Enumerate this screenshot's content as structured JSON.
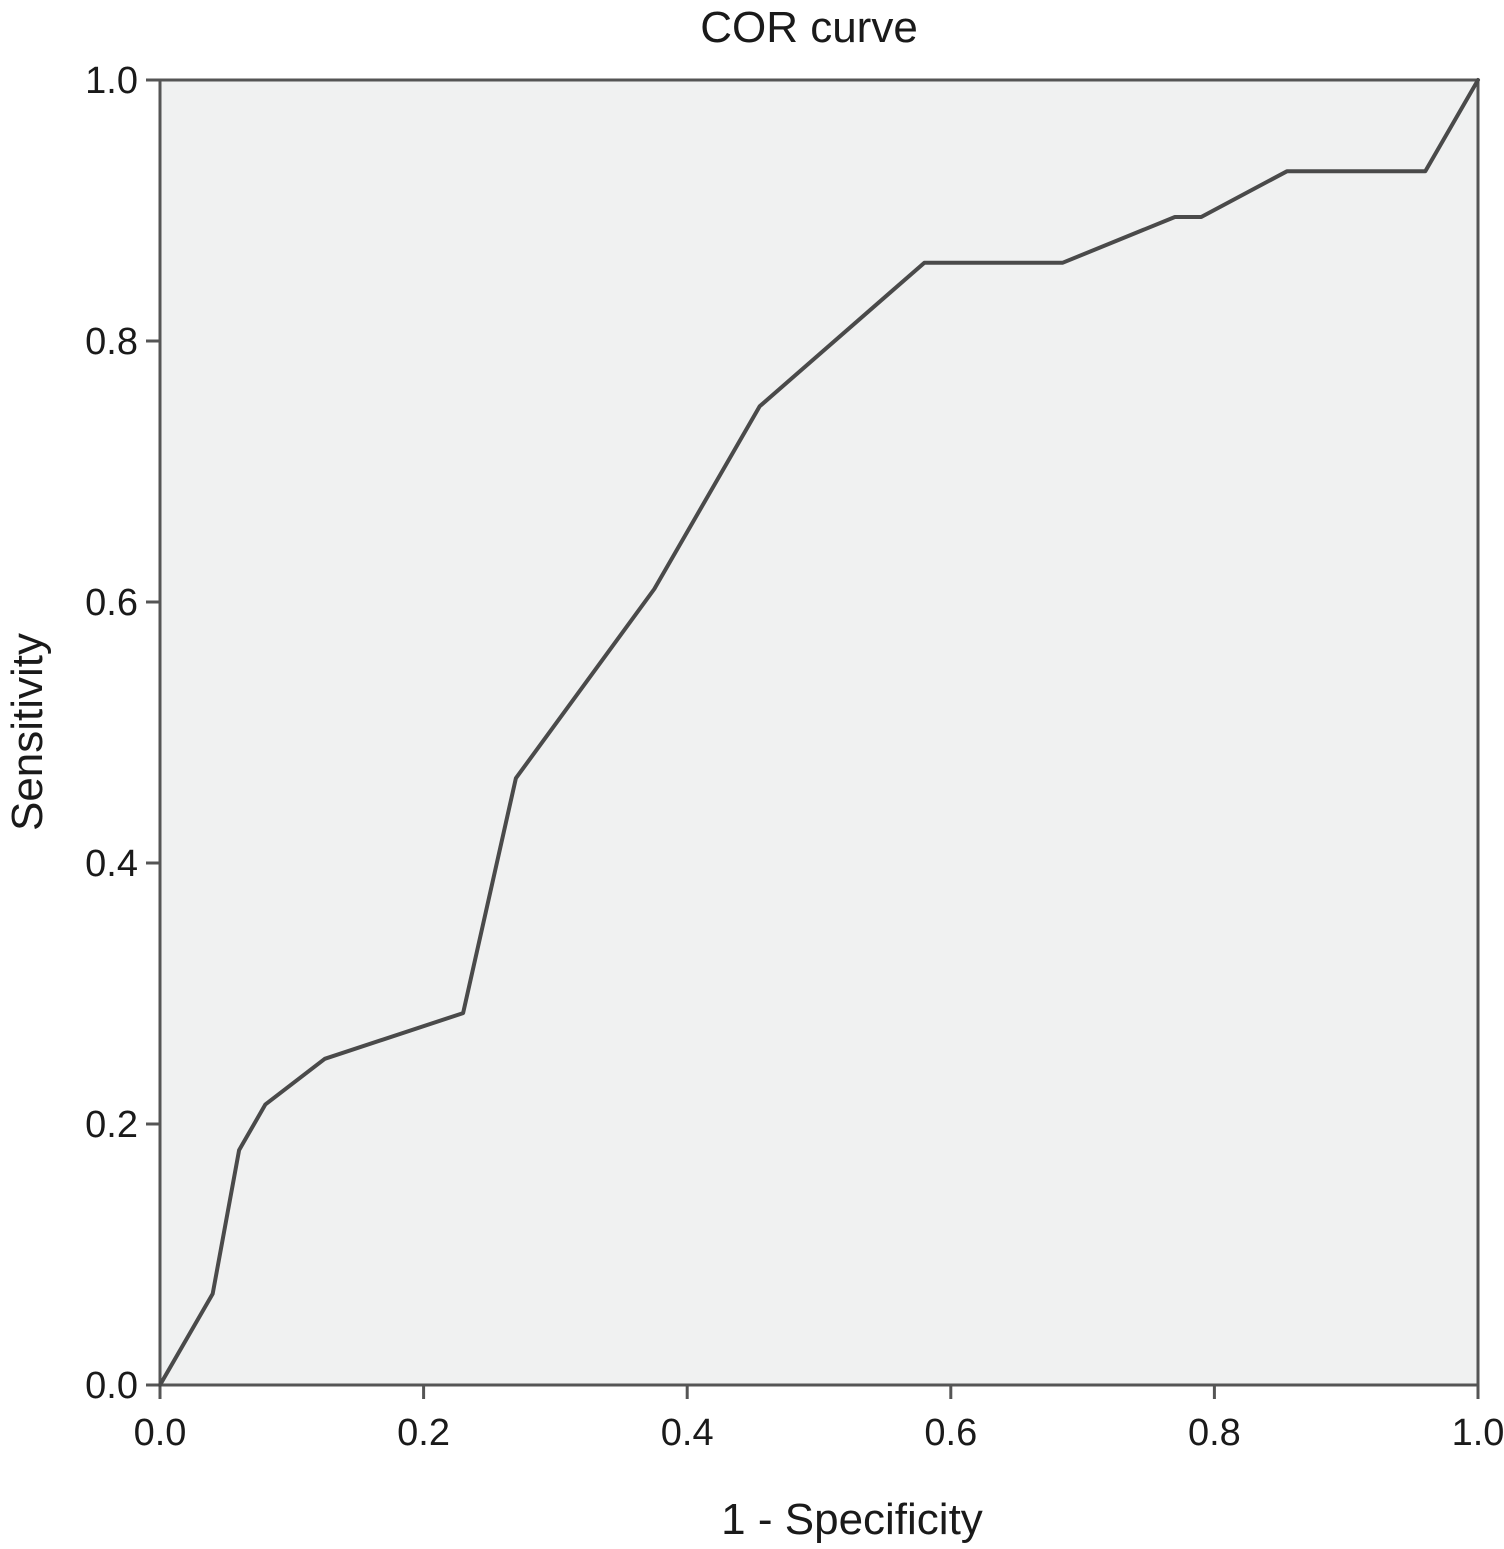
{
  "chart_data": {
    "type": "line",
    "title": "COR curve",
    "xlabel": "1 - Specificity",
    "ylabel": "Sensitivity",
    "xlim": [
      0.0,
      1.0
    ],
    "ylim": [
      0.0,
      1.0
    ],
    "x_ticks": [
      "0.0",
      "0.2",
      "0.4",
      "0.6",
      "0.8",
      "1.0"
    ],
    "y_ticks": [
      "0.0",
      "0.2",
      "0.4",
      "0.6",
      "0.8",
      "1.0"
    ],
    "grid": false,
    "legend": "none",
    "series": [
      {
        "x": [
          0.0,
          0.04,
          0.06,
          0.08,
          0.125,
          0.23,
          0.27,
          0.375,
          0.455,
          0.58,
          0.685,
          0.77,
          0.79,
          0.855,
          0.96,
          1.0
        ],
        "y": [
          0.0,
          0.07,
          0.18,
          0.215,
          0.25,
          0.285,
          0.465,
          0.61,
          0.75,
          0.86,
          0.86,
          0.895,
          0.895,
          0.93,
          0.93,
          1.0
        ]
      }
    ],
    "colors": {
      "plot_background": "#f0f1f1",
      "line": "#4a4a4a",
      "axis": "#555555"
    }
  }
}
